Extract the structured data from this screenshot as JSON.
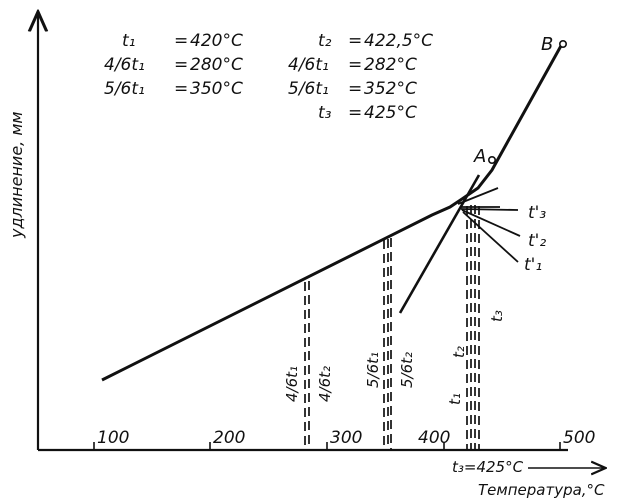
{
  "figure": {
    "ink_color": "#111111",
    "background": "#ffffff"
  },
  "axes": {
    "y_label": "удлинение, мм",
    "x_label": "Температура,°С",
    "x_ticks": [
      "100",
      "200",
      "300",
      "400",
      "500"
    ]
  },
  "legend": {
    "left": [
      {
        "label": "t₁",
        "eq": "=",
        "value": "420°С"
      },
      {
        "label": "4/6t₁",
        "eq": "=",
        "value": "280°С"
      },
      {
        "label": "5/6t₁",
        "eq": "=",
        "value": "350°С"
      }
    ],
    "right": [
      {
        "label": "t₂",
        "eq": "=",
        "value": "422,5°С"
      },
      {
        "label": "4/6t₁",
        "eq": "=",
        "value": "282°С"
      },
      {
        "label": "5/6t₁",
        "eq": "=",
        "value": "352°С"
      },
      {
        "label": "t₃",
        "eq": "=",
        "value": "425°С"
      }
    ]
  },
  "points": {
    "A": "A",
    "B": "B"
  },
  "right_labels": [
    "t'₃",
    "t'₂",
    "t'₁"
  ],
  "vertical_labels": {
    "l46t1": "4/6t₁",
    "l46t2": "4/6t₂",
    "l56t1": "5/6t₁",
    "l56t2": "5/6t₂",
    "t1": "t₁",
    "t2": "t₂",
    "t3": "t₃"
  },
  "t3_annotation": "t₃=425°С"
}
